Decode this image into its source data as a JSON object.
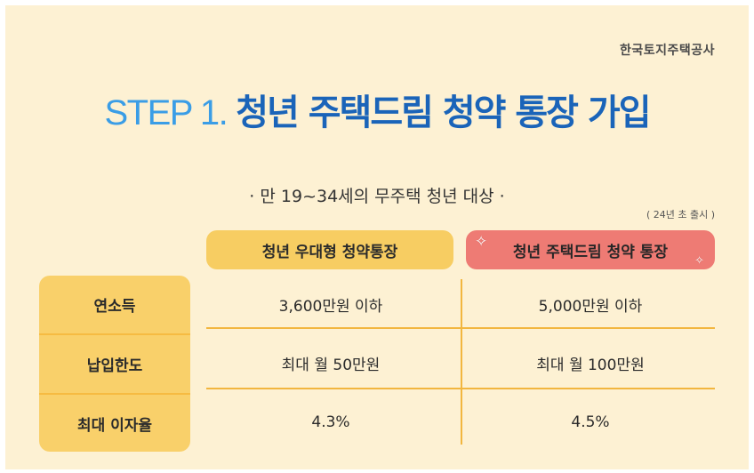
{
  "organization": "한국토지주택공사",
  "title": {
    "step": "STEP 1.",
    "main": "청년 주택드림 청약 통장 가입"
  },
  "subtitle": "· 만 19~34세의 무주택 청년 대상 ·",
  "release_note": "( 24년 초 출시 )",
  "columns": [
    "청년 우대형 청약통장",
    "청년 주택드림 청약 통장"
  ],
  "rows": [
    {
      "label": "연소득",
      "values": [
        "3,600만원 이하",
        "5,000만원 이하"
      ]
    },
    {
      "label": "납입한도",
      "values": [
        "최대 월 50만원",
        "최대 월 100만원"
      ]
    },
    {
      "label": "최대 이자율",
      "values": [
        "4.3%",
        "4.5%"
      ]
    }
  ],
  "colors": {
    "background": "#fdf1d3",
    "step_blue": "#3a9de6",
    "title_blue": "#1a64b9",
    "yellow_pill": "#f7cd62",
    "red_pill": "#ee7b74",
    "label_column": "#f9d06a",
    "divider": "#f2b63f"
  },
  "icons": [
    "sparkle-icon"
  ]
}
